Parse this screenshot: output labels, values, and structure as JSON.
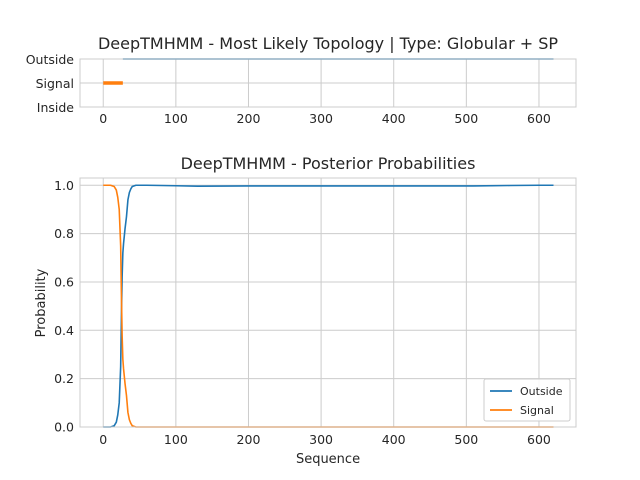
{
  "chart_data": [
    {
      "type": "line",
      "title": "DeepTMHMM - Most Likely Topology | Type: Globular + SP",
      "xlabel": "",
      "ylabel": "",
      "xlim": [
        -32,
        651
      ],
      "xticks": [
        0,
        100,
        200,
        300,
        400,
        500,
        600
      ],
      "ycategories": [
        "Outside",
        "Signal",
        "Inside"
      ],
      "grid": true,
      "series": [
        {
          "name": "Signal",
          "color": "#ff7f0e",
          "category": "Signal",
          "x_range": [
            0,
            27
          ]
        },
        {
          "name": "Outside",
          "color": "#1f77b4",
          "category": "Outside",
          "x_range": [
            27,
            620
          ]
        }
      ]
    },
    {
      "type": "line",
      "title": "DeepTMHMM - Posterior Probabilities",
      "xlabel": "Sequence",
      "ylabel": "Probability",
      "xlim": [
        -32,
        651
      ],
      "ylim": [
        0.0,
        1.03
      ],
      "xticks": [
        0,
        100,
        200,
        300,
        400,
        500,
        600
      ],
      "yticks": [
        "0.0",
        "0.2",
        "0.4",
        "0.6",
        "0.8",
        "1.0"
      ],
      "grid": true,
      "legend_position": "bottom-right",
      "series": [
        {
          "name": "Outside",
          "color": "#1f77b4",
          "x": [
            0,
            10,
            15,
            18,
            20,
            22,
            24,
            25,
            26,
            27,
            28,
            29,
            30,
            32,
            34,
            36,
            38,
            40,
            45,
            60,
            100,
            130,
            200,
            300,
            400,
            510,
            560,
            600,
            620
          ],
          "y": [
            0.0,
            0.0,
            0.005,
            0.02,
            0.05,
            0.1,
            0.25,
            0.45,
            0.62,
            0.72,
            0.76,
            0.79,
            0.82,
            0.87,
            0.94,
            0.97,
            0.985,
            0.995,
            1.0,
            1.0,
            0.998,
            0.996,
            0.997,
            0.997,
            0.997,
            0.997,
            0.999,
            1.0,
            1.0
          ]
        },
        {
          "name": "Signal",
          "color": "#ff7f0e",
          "x": [
            0,
            10,
            15,
            18,
            20,
            22,
            24,
            25,
            26,
            27,
            28,
            29,
            30,
            32,
            34,
            36,
            38,
            40,
            45,
            60,
            100,
            200,
            300,
            400,
            500,
            600,
            620
          ],
          "y": [
            1.0,
            1.0,
            0.995,
            0.98,
            0.95,
            0.9,
            0.75,
            0.55,
            0.38,
            0.28,
            0.24,
            0.21,
            0.18,
            0.13,
            0.06,
            0.03,
            0.015,
            0.005,
            0.0,
            0.0,
            0.0,
            0.0,
            0.0,
            0.0,
            0.0,
            0.0,
            0.0
          ]
        }
      ]
    }
  ]
}
